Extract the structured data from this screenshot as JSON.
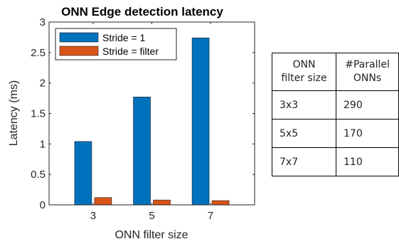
{
  "chart_data": {
    "type": "bar",
    "title": "ONN Edge detection latency",
    "xlabel": "ONN filter size",
    "ylabel": "Latency (ms)",
    "categories": [
      "3",
      "5",
      "7"
    ],
    "series": [
      {
        "name": "Stride = 1",
        "values": [
          1.04,
          1.77,
          2.74
        ],
        "color": "#0072BD"
      },
      {
        "name": "Stride = filter",
        "values": [
          0.12,
          0.08,
          0.07
        ],
        "color": "#D95319"
      }
    ],
    "ylim": [
      0,
      3
    ],
    "yticks": [
      "0",
      "0.5",
      "1",
      "1.5",
      "2",
      "2.5",
      "3"
    ],
    "yticks_values": [
      0,
      0.5,
      1,
      1.5,
      2,
      2.5,
      3
    ],
    "grid": false,
    "legend": "top-left"
  },
  "table": {
    "headers": [
      "ONN filter size",
      "#Parallel ONNs"
    ],
    "header_lines": [
      [
        "ONN",
        "filter size"
      ],
      [
        "#Parallel",
        "ONNs"
      ]
    ],
    "rows": [
      [
        "3x3",
        "290"
      ],
      [
        "5x5",
        "170"
      ],
      [
        "7x7",
        "110"
      ]
    ]
  }
}
